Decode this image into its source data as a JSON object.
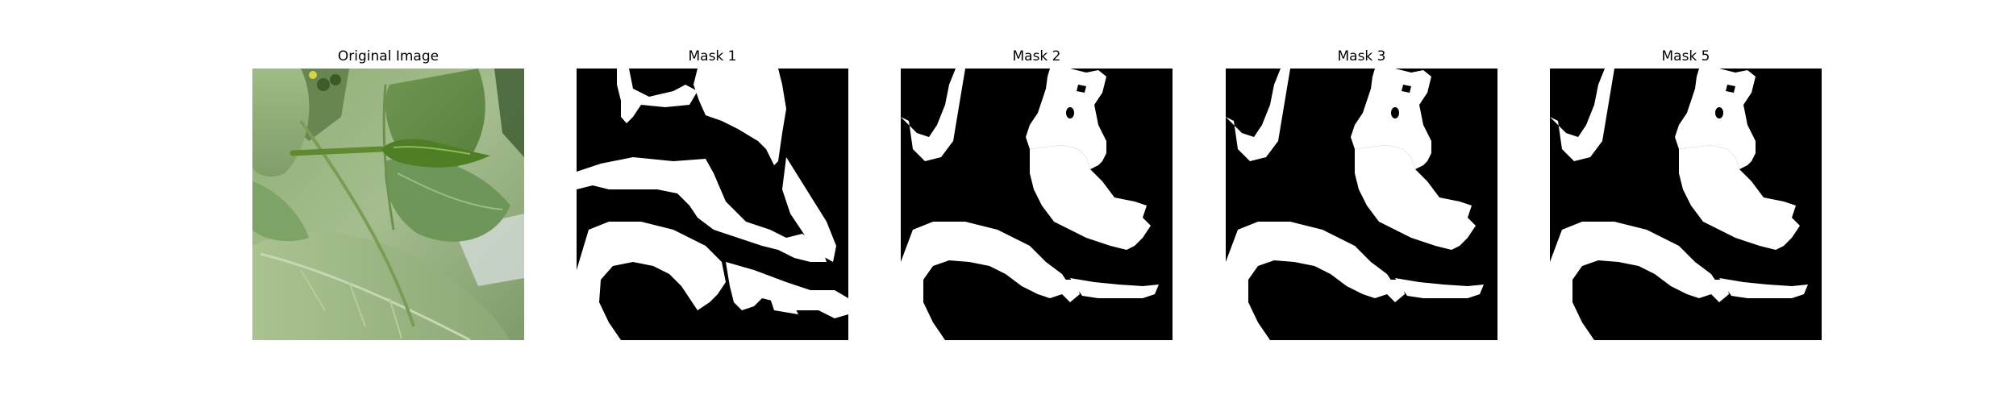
{
  "figure": {
    "panels": [
      {
        "title": "Original Image",
        "kind": "photo",
        "subject": "green-pepper-plant"
      },
      {
        "title": "Mask 1",
        "kind": "binary-mask"
      },
      {
        "title": "Mask 2",
        "kind": "binary-mask"
      },
      {
        "title": "Mask 3",
        "kind": "binary-mask"
      },
      {
        "title": "Mask 5",
        "kind": "binary-mask"
      }
    ],
    "colors": {
      "mask_foreground": "#ffffff",
      "mask_background": "#000000"
    }
  }
}
